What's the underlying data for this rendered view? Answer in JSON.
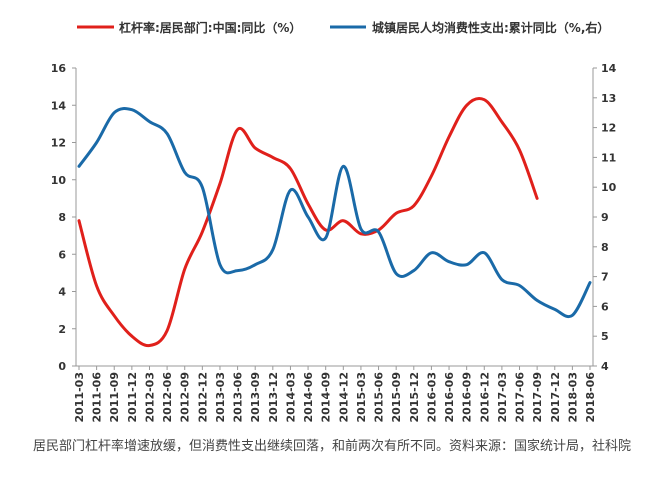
{
  "chart_data": {
    "type": "line",
    "categories": [
      "2011-03",
      "2011-06",
      "2011-09",
      "2011-12",
      "2012-03",
      "2012-06",
      "2012-09",
      "2012-12",
      "2013-03",
      "2013-06",
      "2013-09",
      "2013-12",
      "2014-03",
      "2014-06",
      "2014-09",
      "2014-12",
      "2015-03",
      "2015-06",
      "2015-09",
      "2015-12",
      "2016-03",
      "2016-06",
      "2016-09",
      "2016-12",
      "2017-03",
      "2017-06",
      "2017-09",
      "2017-12",
      "2018-03",
      "2018-06"
    ],
    "series": [
      {
        "name": "杠杆率:居民部门:中国:同比（%）",
        "axis": "left",
        "color": "#e0201b",
        "values": [
          7.8,
          4.3,
          2.7,
          1.6,
          1.1,
          1.9,
          5.2,
          7.2,
          9.8,
          12.7,
          11.7,
          11.2,
          10.6,
          8.7,
          7.3,
          7.8,
          7.1,
          7.3,
          8.2,
          8.6,
          10.2,
          12.3,
          14.0,
          14.3,
          13.1,
          11.6,
          9.0,
          null,
          null,
          null
        ]
      },
      {
        "name": "城镇居民人均消费性支出:累计同比（%,右）",
        "axis": "right",
        "color": "#1a6aa8",
        "values": [
          10.7,
          11.5,
          12.5,
          12.6,
          12.2,
          11.8,
          10.5,
          10.0,
          7.4,
          7.2,
          7.4,
          7.9,
          9.9,
          9.0,
          8.3,
          10.7,
          8.6,
          8.5,
          7.1,
          7.2,
          7.8,
          7.5,
          7.4,
          7.8,
          6.9,
          6.7,
          6.2,
          5.9,
          5.7,
          6.8
        ]
      }
    ],
    "y_left": {
      "ylim": [
        0,
        16
      ],
      "ticks": [
        "0",
        "2",
        "4",
        "6",
        "8",
        "10",
        "12",
        "14",
        "16"
      ]
    },
    "y_right": {
      "ylim": [
        4,
        14
      ],
      "ticks": [
        "4",
        "5",
        "6",
        "7",
        "8",
        "9",
        "10",
        "11",
        "12",
        "13",
        "14"
      ]
    },
    "legend": "top",
    "grid": false
  },
  "legend": {
    "series1": "杠杆率:居民部门:中国:同比（%）",
    "series2": "城镇居民人均消费性支出:累计同比（%,右）"
  },
  "caption": "居民部门杠杆率增速放缓，但消费性支出继续回落，和前两次有所不同。资料来源：国家统计局，社科院"
}
